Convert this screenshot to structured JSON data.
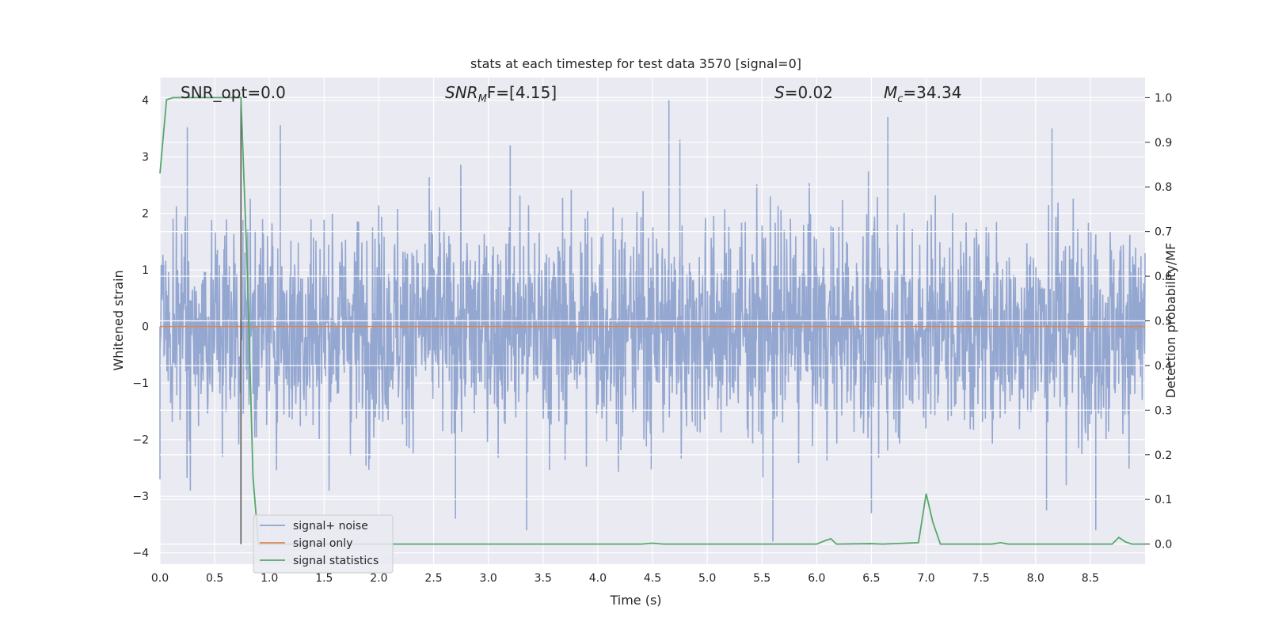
{
  "chart_data": {
    "type": "line",
    "title": "stats at each timestep for test data 3570 [signal=0]",
    "xlabel": "Time (s)",
    "ylabel": "Whitened strain",
    "ylabel_right": "Detection probability/MF",
    "xlim": [
      0.0,
      9.0
    ],
    "ylim": [
      -4.2,
      4.4
    ],
    "ylim_right": [
      -0.045,
      1.045
    ],
    "x_ticks": [
      "0.0",
      "0.5",
      "1.0",
      "1.5",
      "2.0",
      "2.5",
      "3.0",
      "3.5",
      "4.0",
      "4.5",
      "5.0",
      "5.5",
      "6.0",
      "6.5",
      "7.0",
      "7.5",
      "8.0",
      "8.5"
    ],
    "y_ticks": [
      "4",
      "3",
      "2",
      "1",
      "0",
      "−1",
      "−2",
      "−3",
      "−4"
    ],
    "y_ticks_right": [
      "1.0",
      "0.9",
      "0.8",
      "0.7",
      "0.6",
      "0.5",
      "0.4",
      "0.3",
      "0.2",
      "0.1",
      "0.0"
    ],
    "grid": true,
    "legend_placement": "lower-left",
    "annotations": {
      "snr_opt": "SNR_opt=0.0",
      "snr_mf_sym": "SNR",
      "snr_mf_sub": "M",
      "snr_mf_val": "F=[4.15]",
      "s_sym": "S",
      "s_val": "=0.02",
      "mc_sym": "M",
      "mc_sub": "c",
      "mc_val": "=34.34"
    },
    "marker_line_x": 0.74,
    "series": [
      {
        "name": "signal+ noise",
        "color": "#8fa3cd",
        "description_only": false,
        "noise_band": [
          -1.5,
          1.7
        ],
        "peak_spikes": [
          [
            0.25,
            3.52
          ],
          [
            1.1,
            3.56
          ],
          [
            3.2,
            3.2
          ],
          [
            4.65,
            4.0
          ],
          [
            4.75,
            3.3
          ],
          [
            6.65,
            3.7
          ],
          [
            8.15,
            3.5
          ],
          [
            0.0,
            -2.7
          ],
          [
            2.7,
            -3.4
          ],
          [
            3.35,
            -3.6
          ],
          [
            5.6,
            -3.8
          ],
          [
            6.5,
            -3.3
          ],
          [
            8.55,
            -3.6
          ],
          [
            8.1,
            -3.25
          ]
        ]
      },
      {
        "name": "signal only",
        "color": "#dd8452",
        "values": [
          [
            0.0,
            0.0
          ],
          [
            9.0,
            0.0
          ]
        ]
      },
      {
        "name": "signal statistics",
        "color": "#55a868",
        "axis": "right",
        "values": [
          [
            0.0,
            0.83
          ],
          [
            0.06,
            0.995
          ],
          [
            0.12,
            1.0
          ],
          [
            0.3,
            1.0
          ],
          [
            0.5,
            1.0
          ],
          [
            0.74,
            1.0
          ],
          [
            0.8,
            0.6
          ],
          [
            0.85,
            0.15
          ],
          [
            0.9,
            0.0
          ],
          [
            1.5,
            0.0
          ],
          [
            2.5,
            0.0
          ],
          [
            3.5,
            0.0
          ],
          [
            4.4,
            0.0
          ],
          [
            4.5,
            0.002
          ],
          [
            4.6,
            0.0
          ],
          [
            5.5,
            0.0
          ],
          [
            6.0,
            0.0
          ],
          [
            6.08,
            0.008
          ],
          [
            6.13,
            0.012
          ],
          [
            6.18,
            0.0
          ],
          [
            6.5,
            0.001
          ],
          [
            6.6,
            0.0
          ],
          [
            6.93,
            0.003
          ],
          [
            7.0,
            0.113
          ],
          [
            7.06,
            0.05
          ],
          [
            7.13,
            0.0
          ],
          [
            7.6,
            0.0
          ],
          [
            7.68,
            0.003
          ],
          [
            7.75,
            0.0
          ],
          [
            8.7,
            0.0
          ],
          [
            8.76,
            0.015
          ],
          [
            8.82,
            0.005
          ],
          [
            8.88,
            0.0
          ],
          [
            9.0,
            0.0
          ]
        ]
      }
    ]
  }
}
